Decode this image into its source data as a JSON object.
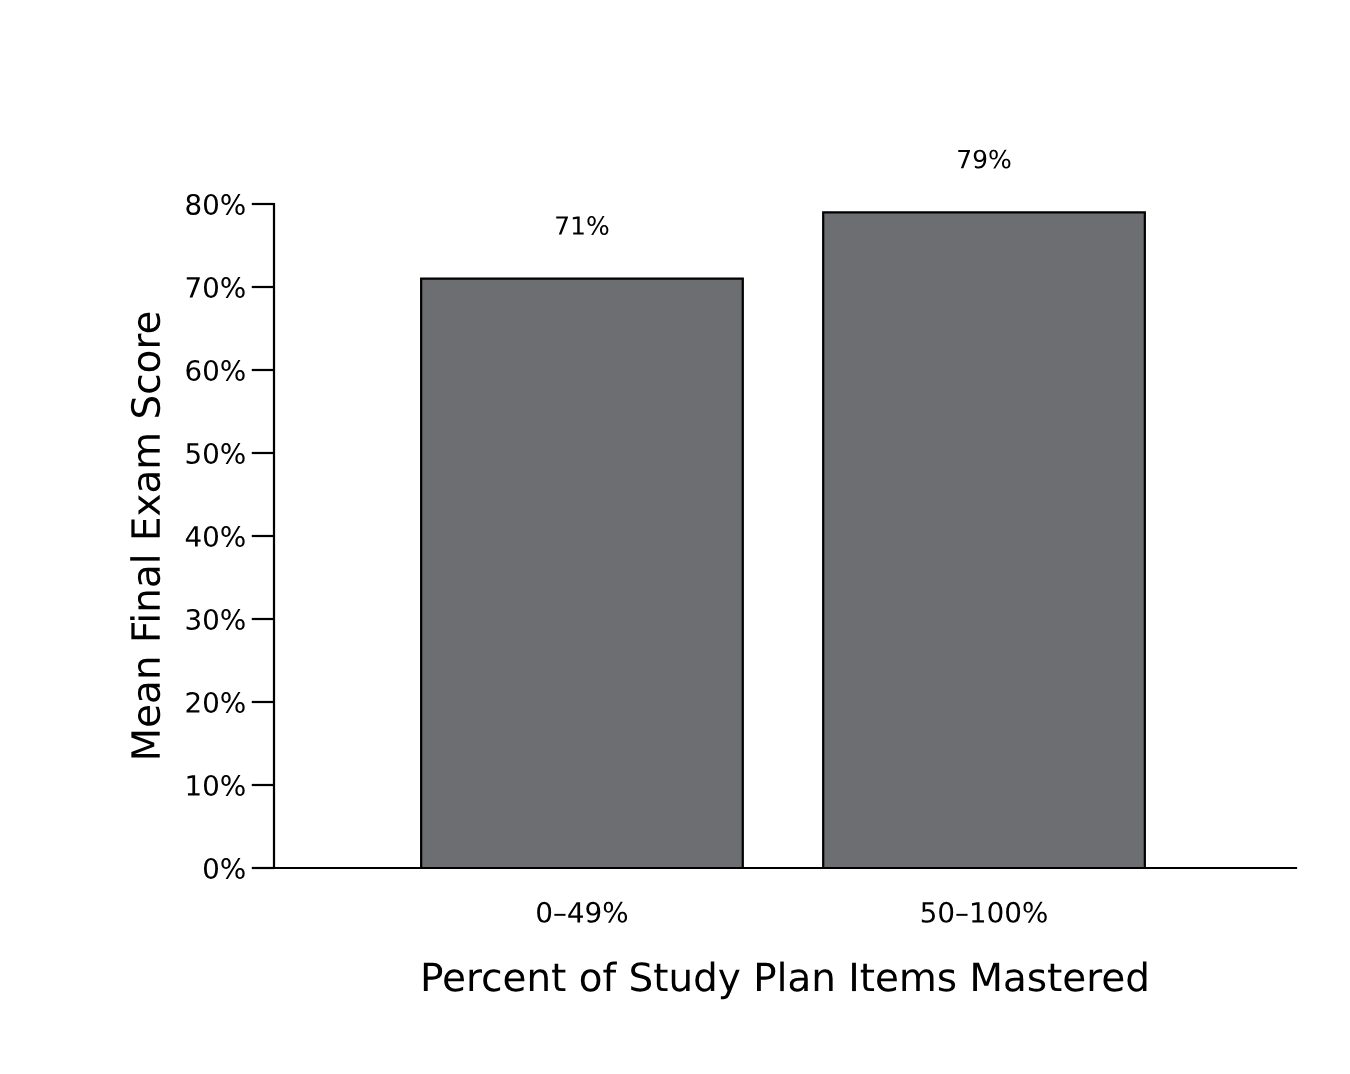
{
  "chart_data": {
    "type": "bar",
    "xlabel": "Percent of Study Plan Items Mastered",
    "ylabel": "Mean Final Exam Score",
    "categories": [
      "0–49%",
      "50–100%"
    ],
    "values": [
      71,
      79
    ],
    "value_labels": [
      "71%",
      "79%"
    ],
    "color": "#6d6e71",
    "ylim": [
      0,
      80
    ],
    "yticks": [
      {
        "value": 0,
        "label": "0%"
      },
      {
        "value": 10,
        "label": "10%"
      },
      {
        "value": 20,
        "label": "20%"
      },
      {
        "value": 30,
        "label": "30%"
      },
      {
        "value": 40,
        "label": "40%"
      },
      {
        "value": 50,
        "label": "50%"
      },
      {
        "value": 60,
        "label": "60%"
      },
      {
        "value": 70,
        "label": "70%"
      },
      {
        "value": 80,
        "label": "80%"
      }
    ],
    "grid": false,
    "legend": false
  }
}
